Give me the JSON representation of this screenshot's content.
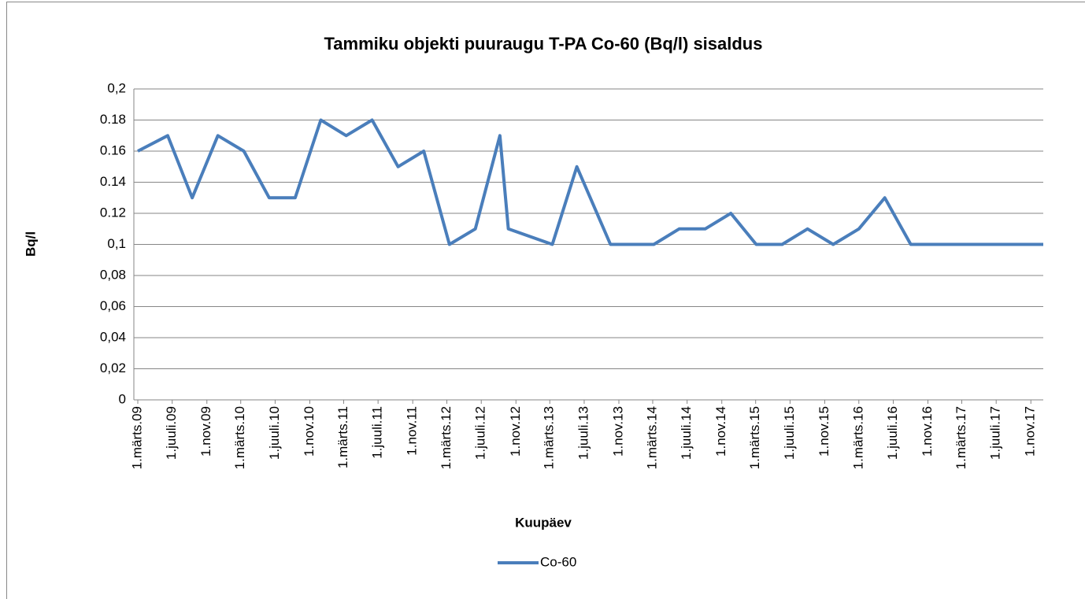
{
  "chart_data": {
    "type": "line",
    "title": "Tammiku objekti puuraugu T-PA Co-60 (Bq/l) sisaldus",
    "x_label": "Kuupäev",
    "y_label": "Bq/l",
    "x": [
      "2009-03-01",
      "2009-06-15",
      "2009-09-10",
      "2009-12-10",
      "2010-03-12",
      "2010-06-10",
      "2010-09-10",
      "2010-12-10",
      "2011-03-10",
      "2011-06-10",
      "2011-09-10",
      "2011-12-10",
      "2012-03-10",
      "2012-06-10",
      "2012-09-05",
      "2012-10-05",
      "2013-03-10",
      "2013-06-05",
      "2013-10-02",
      "2014-03-05",
      "2014-06-03",
      "2014-09-03",
      "2014-12-03",
      "2015-03-03",
      "2015-06-03",
      "2015-09-01",
      "2015-12-01",
      "2016-03-01",
      "2016-06-01",
      "2016-09-01",
      "2016-12-01",
      "2017-03-01",
      "2017-06-01",
      "2017-09-01",
      "2017-12-15"
    ],
    "series": [
      {
        "name": "Co-60",
        "color": "#4a7ebb",
        "values": [
          0.16,
          0.17,
          0.13,
          0.17,
          0.16,
          0.13,
          0.13,
          0.18,
          0.17,
          0.18,
          0.15,
          0.16,
          0.1,
          0.11,
          0.17,
          0.11,
          0.1,
          0.15,
          0.1,
          0.1,
          0.11,
          0.11,
          0.12,
          0.1,
          0.1,
          0.11,
          0.1,
          0.11,
          0.13,
          0.1,
          0.1,
          0.1,
          0.1,
          0.1,
          0.1
        ]
      }
    ],
    "xlim": [
      "2009-02-15",
      "2017-12-15"
    ],
    "xticks": [
      {
        "value": "2009-03-01",
        "label": "1.märts.09"
      },
      {
        "value": "2009-07-01",
        "label": "1.juuli.09"
      },
      {
        "value": "2009-11-01",
        "label": "1.nov.09"
      },
      {
        "value": "2010-03-01",
        "label": "1.märts.10"
      },
      {
        "value": "2010-07-01",
        "label": "1.juuli.10"
      },
      {
        "value": "2010-11-01",
        "label": "1.nov.10"
      },
      {
        "value": "2011-03-01",
        "label": "1.märts.11"
      },
      {
        "value": "2011-07-01",
        "label": "1.juuli.11"
      },
      {
        "value": "2011-11-01",
        "label": "1.nov.11"
      },
      {
        "value": "2012-03-01",
        "label": "1.märts.12"
      },
      {
        "value": "2012-07-01",
        "label": "1.juuli.12"
      },
      {
        "value": "2012-11-01",
        "label": "1.nov.12"
      },
      {
        "value": "2013-03-01",
        "label": "1.märts.13"
      },
      {
        "value": "2013-07-01",
        "label": "1.juuli.13"
      },
      {
        "value": "2013-11-01",
        "label": "1.nov.13"
      },
      {
        "value": "2014-03-01",
        "label": "1.märts.14"
      },
      {
        "value": "2014-07-01",
        "label": "1.juuli.14"
      },
      {
        "value": "2014-11-01",
        "label": "1.nov.14"
      },
      {
        "value": "2015-03-01",
        "label": "1.märts.15"
      },
      {
        "value": "2015-07-01",
        "label": "1.juuli.15"
      },
      {
        "value": "2015-11-01",
        "label": "1.nov.15"
      },
      {
        "value": "2016-03-01",
        "label": "1.märts.16"
      },
      {
        "value": "2016-07-01",
        "label": "1.juuli.16"
      },
      {
        "value": "2016-11-01",
        "label": "1.nov.16"
      },
      {
        "value": "2017-03-01",
        "label": "1.märts.17"
      },
      {
        "value": "2017-07-01",
        "label": "1.juuli.17"
      },
      {
        "value": "2017-11-01",
        "label": "1.nov.17"
      }
    ],
    "ylim": [
      0,
      0.2
    ],
    "yticks": [
      0,
      {
        "value": 0.02,
        "label": "0,02"
      },
      {
        "value": 0.04,
        "label": "0,04"
      },
      {
        "value": 0.06,
        "label": "0,06"
      },
      {
        "value": 0.08,
        "label": "0,08"
      },
      {
        "value": 0.1,
        "label": "0,1"
      },
      0.12,
      0.14,
      0.16,
      0.18,
      {
        "value": 0.2,
        "label": "0,2"
      }
    ],
    "grid": true,
    "legend": "bottom"
  }
}
